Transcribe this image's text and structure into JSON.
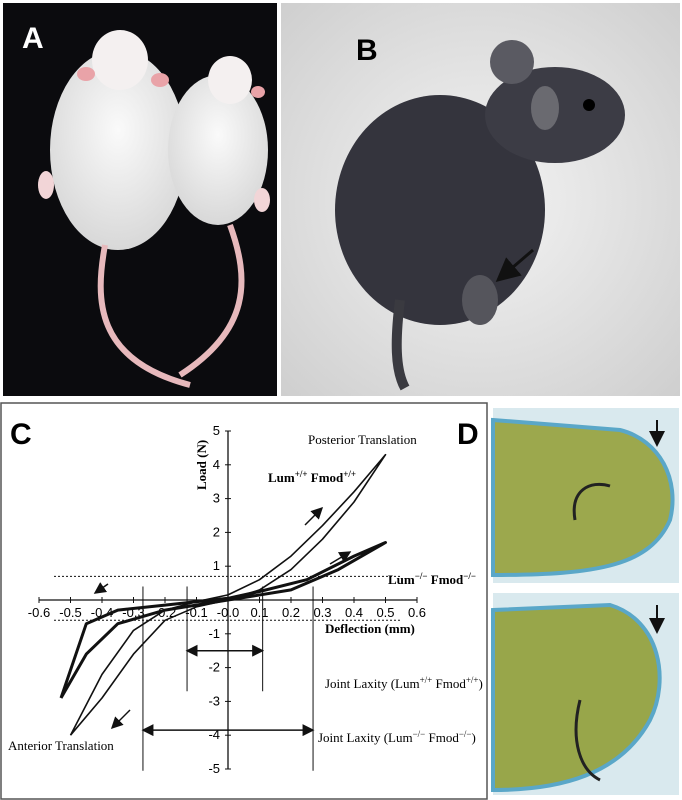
{
  "panel_labels": [
    "A",
    "B",
    "C",
    "D"
  ],
  "chart_data": {
    "type": "line",
    "xlabel": "Deflection (mm)",
    "ylabel": "Load (N)",
    "xlim": [
      -0.6,
      0.6
    ],
    "ylim": [
      -5,
      5
    ],
    "xticks": [
      -0.6,
      -0.5,
      -0.4,
      -0.3,
      -0.2,
      -0.1,
      {
        "value": 0,
        "label": "-0.0"
      },
      0.1,
      0.2,
      0.3,
      0.4,
      0.5,
      0.6
    ],
    "yticks": [
      -5,
      -4,
      -3,
      -2,
      -1,
      0,
      1,
      2,
      3,
      4,
      5
    ],
    "series": [
      {
        "name": [
          "Lum",
          "+/+",
          " Fmod",
          "+/+"
        ],
        "color": "#111111",
        "width": 1.6,
        "x": [
          -0.5,
          -0.4,
          -0.3,
          -0.2,
          -0.1,
          0,
          0.1,
          0.2,
          0.3,
          0.4,
          0.5,
          0.4,
          0.3,
          0.2,
          0.1,
          0,
          -0.1,
          -0.2,
          -0.3,
          -0.4,
          -0.5
        ],
        "values": [
          -4.0,
          -2.9,
          -1.6,
          -0.6,
          -0.2,
          0,
          0.3,
          0.9,
          1.8,
          2.9,
          4.3,
          3.2,
          2.2,
          1.3,
          0.6,
          0.15,
          -0.05,
          -0.3,
          -0.9,
          -2.2,
          -4.0
        ]
      },
      {
        "name": [
          "Lum",
          "−/−",
          " Fmod",
          "−/−"
        ],
        "color": "#111111",
        "width": 3,
        "x": [
          -0.53,
          -0.45,
          -0.35,
          -0.2,
          0,
          0.2,
          0.35,
          0.5,
          0.4,
          0.25,
          0.1,
          0,
          -0.2,
          -0.35,
          -0.45,
          -0.53
        ],
        "values": [
          -2.9,
          -1.6,
          -0.7,
          -0.3,
          0,
          0.3,
          0.9,
          1.7,
          1.3,
          0.6,
          0.25,
          0.05,
          -0.15,
          -0.3,
          -0.7,
          -2.9
        ]
      }
    ],
    "hlines": [
      0.7,
      -0.6
    ],
    "laxity": [
      {
        "label": [
          "Joint Laxity (Lum",
          "+/+",
          " Fmod",
          "+/+",
          ")"
        ],
        "x": [
          -0.13,
          0.11
        ],
        "y": -1.5
      },
      {
        "label": [
          "Joint Laxity (Lum",
          "−/−",
          " Fmod",
          "−/−",
          ")"
        ],
        "x": [
          -0.27,
          0.27
        ],
        "y": -3.85
      }
    ],
    "annotations": [
      "Posterior Translation",
      "Anterior Translation"
    ]
  }
}
